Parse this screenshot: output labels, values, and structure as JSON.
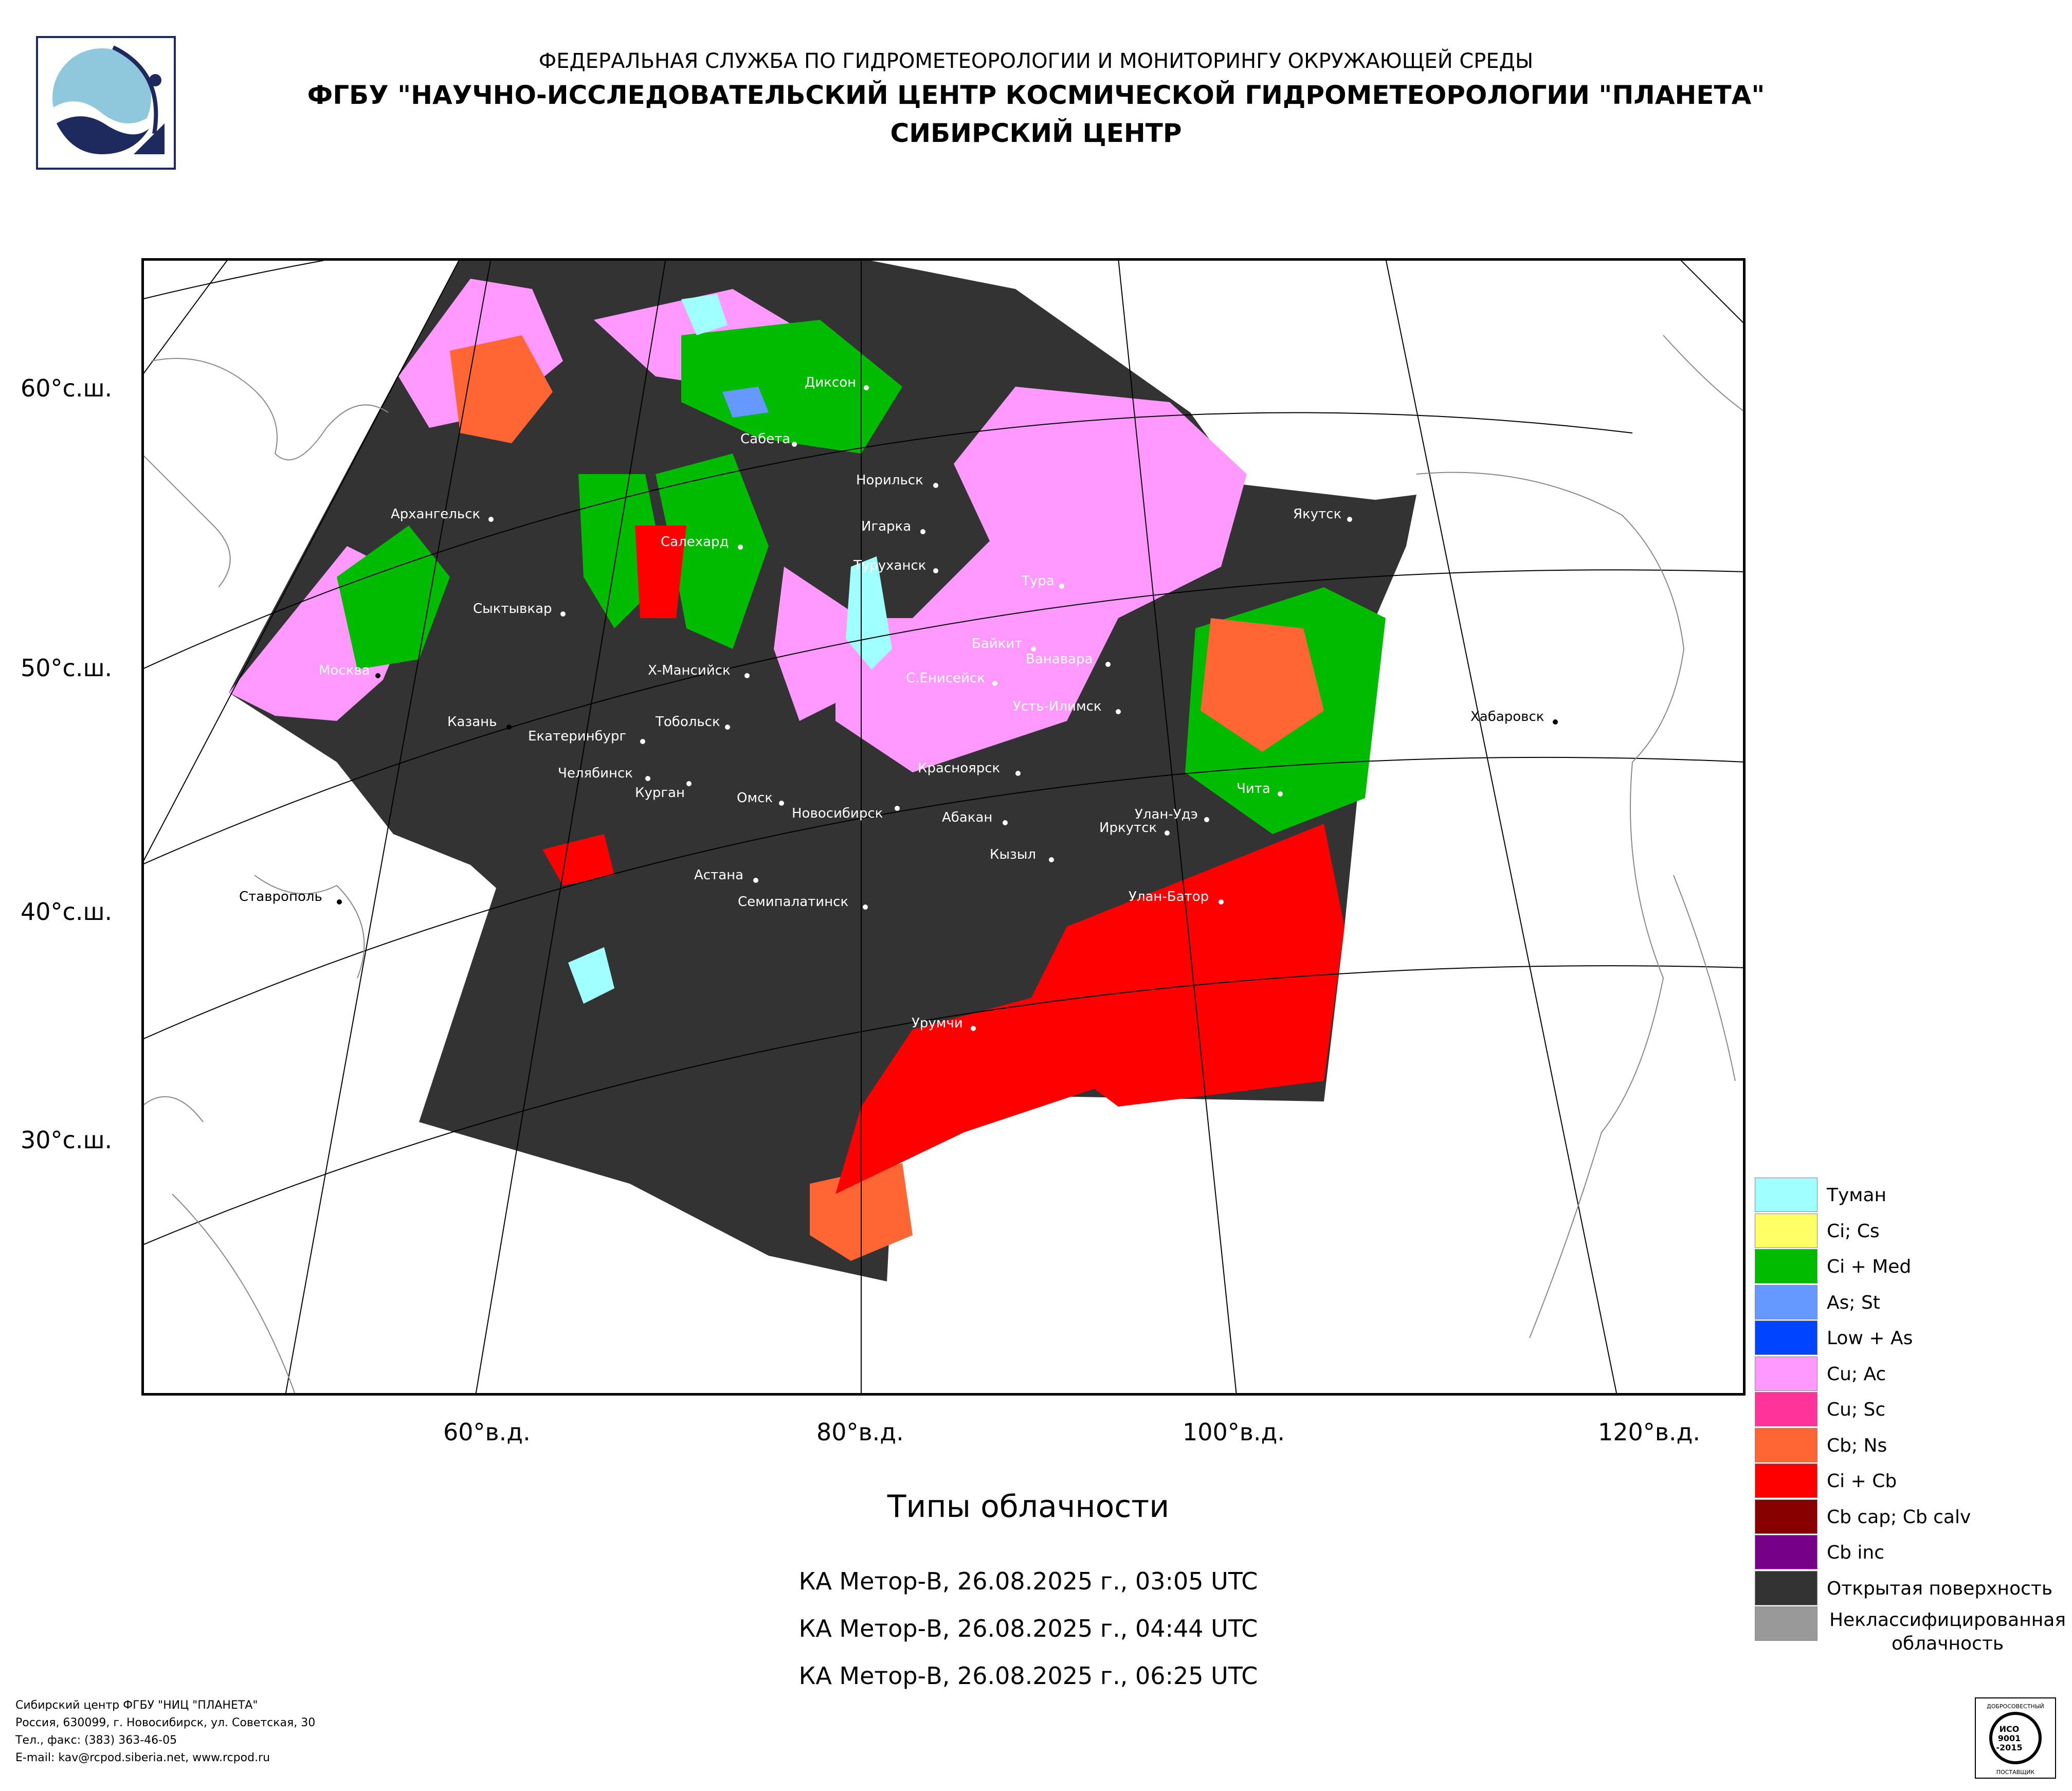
{
  "header": {
    "line1": "ФЕДЕРАЛЬНАЯ СЛУЖБА ПО ГИДРОМЕТЕОРОЛОГИИ И МОНИТОРИНГУ ОКРУЖАЮЩЕЙ СРЕДЫ",
    "line2": "ФГБУ \"НАУЧНО-ИССЛЕДОВАТЕЛЬСКИЙ ЦЕНТР КОСМИЧЕСКОЙ ГИДРОМЕТЕОРОЛОГИИ \"ПЛАНЕТА\"",
    "line3": "СИБИРСКИЙ ЦЕНТР"
  },
  "map": {
    "lat_labels": [
      "60°с.ш.",
      "50°с.ш.",
      "40°с.ш.",
      "30°с.ш."
    ],
    "lon_labels": [
      "60°в.д.",
      "80°в.д.",
      "100°в.д.",
      "120°в.д."
    ],
    "cities": [
      "Диксон",
      "Сабета",
      "Норильск",
      "Якутск",
      "Архангельск",
      "Игарка",
      "Салехард",
      "Туруханск",
      "Тура",
      "Сыктывкар",
      "Байкит",
      "Ванавара",
      "Москва",
      "Х-Мансийск",
      "С.Енисейск",
      "Усть-Илимск",
      "Хабаровск",
      "Казань",
      "Тобольск",
      "Екатеринбург",
      "Красноярск",
      "Челябинск",
      "Чита",
      "Курган",
      "Омск",
      "Новосибирск",
      "Абакан",
      "Улан-Удэ",
      "Иркутск",
      "Кызыл",
      "Астана",
      "Ставрополь",
      "Семипалатинск",
      "Улан-Батор",
      "Урумчи"
    ]
  },
  "legend": [
    {
      "label": "Туман",
      "color": "#A0FFFF"
    },
    {
      "label": "Ci; Cs",
      "color": "#FFFF66"
    },
    {
      "label": "Ci + Med",
      "color": "#00BB00"
    },
    {
      "label": "As; St",
      "color": "#6699FF"
    },
    {
      "label": "Low + As",
      "color": "#0044FF"
    },
    {
      "label": "Cu; Ac",
      "color": "#FF99FF"
    },
    {
      "label": "Cu; Sc",
      "color": "#FF3399"
    },
    {
      "label": "Cb; Ns",
      "color": "#FF6633"
    },
    {
      "label": "Ci + Cb",
      "color": "#FF0000"
    },
    {
      "label": "Cb cap; Cb calv",
      "color": "#880000"
    },
    {
      "label": "Cb inc",
      "color": "#770088"
    },
    {
      "label": "Открытая поверхность",
      "color": "#333333"
    },
    {
      "label": "Неклассифицированная облачность",
      "color": "#999999"
    }
  ],
  "title": "Типы облачности",
  "passes": [
    "КА Метор-В, 26.08.2025 г., 03:05 UTC",
    "КА Метор-В, 26.08.2025 г., 04:44 UTC",
    "КА Метор-В, 26.08.2025 г., 06:25 UTC"
  ],
  "footer": [
    "Сибирский центр ФГБУ \"НИЦ \"ПЛАНЕТА\"",
    "Россия, 630099, г. Новосибирск, ул. Советская, 30",
    "Тел., факс: (383) 363-46-05",
    "E-mail: kav@rcpod.siberia.net, www.rcpod.ru"
  ],
  "cert": {
    "top": "ДОБРОСОВЕСТНЫЙ",
    "l1": "ИСО",
    "l2": "9001",
    "l3": "-2015",
    "bottom": "ПОСТАВЩИК"
  }
}
